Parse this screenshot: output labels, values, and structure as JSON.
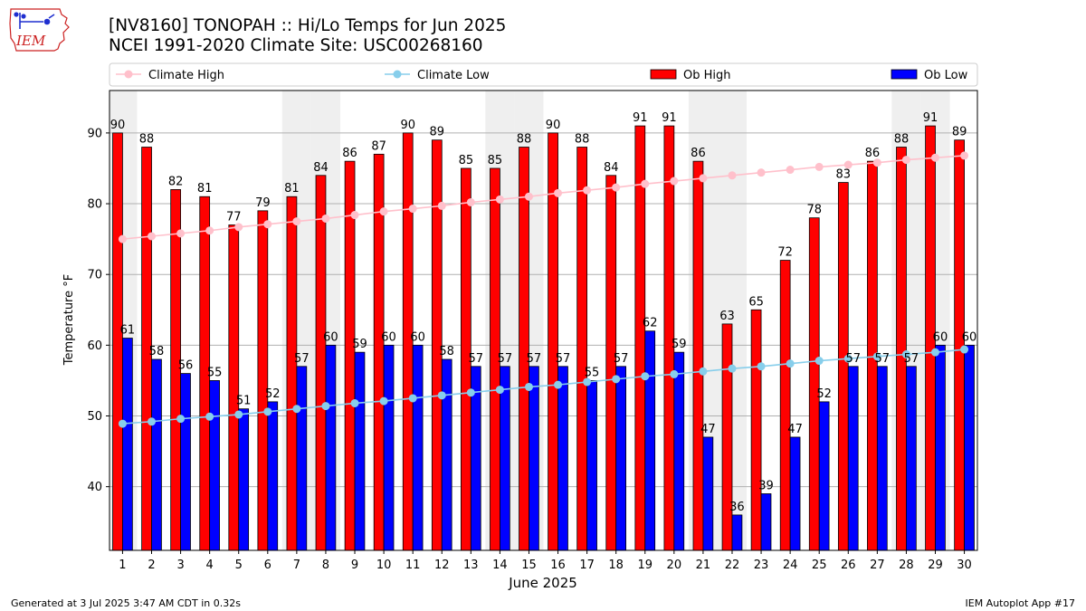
{
  "header": {
    "title_line1": "[NV8160] TONOPAH :: Hi/Lo Temps for Jun 2025",
    "title_line2": "NCEI 1991-2020 Climate Site: USC00268160",
    "logo_text": "IEM"
  },
  "footer": {
    "left": "Generated at 3 Jul 2025 3:47 AM CDT in 0.32s",
    "right": "IEM Autoplot App #17"
  },
  "colors": {
    "ob_high": "#ff0000",
    "ob_low": "#0000ff",
    "climate_high": "#ffc0cb",
    "climate_low": "#87ceeb",
    "weekend_band": "#efefef",
    "grid": "#b0b0b0",
    "logo_red": "#cc2222",
    "logo_blue": "#1f2fcf"
  },
  "chart_data": {
    "type": "bar",
    "xlabel": "June 2025",
    "ylabel": "Temperature °F",
    "ylim": [
      31,
      96
    ],
    "xlim": [
      0.55,
      30.45
    ],
    "yticks": [
      40,
      50,
      60,
      70,
      80,
      90
    ],
    "grid": "horizontal",
    "legend_position": "top",
    "categories": [
      1,
      2,
      3,
      4,
      5,
      6,
      7,
      8,
      9,
      10,
      11,
      12,
      13,
      14,
      15,
      16,
      17,
      18,
      19,
      20,
      21,
      22,
      23,
      24,
      25,
      26,
      27,
      28,
      29,
      30
    ],
    "shaded_days": [
      1,
      7,
      8,
      14,
      15,
      21,
      22,
      28,
      29
    ],
    "series": [
      {
        "name": "Ob High",
        "kind": "bar",
        "color": "#ff0000",
        "values": [
          90,
          88,
          82,
          81,
          77,
          79,
          81,
          84,
          86,
          87,
          90,
          89,
          85,
          85,
          88,
          90,
          88,
          84,
          91,
          91,
          86,
          63,
          65,
          72,
          78,
          83,
          86,
          88,
          91,
          89
        ]
      },
      {
        "name": "Ob Low",
        "kind": "bar",
        "color": "#0000ff",
        "values": [
          61,
          58,
          56,
          55,
          51,
          52,
          57,
          60,
          59,
          60,
          60,
          58,
          57,
          57,
          57,
          57,
          55,
          57,
          62,
          59,
          47,
          36,
          39,
          47,
          52,
          57,
          57,
          57,
          60,
          60
        ]
      },
      {
        "name": "Climate High",
        "kind": "line",
        "color": "#ffc0cb",
        "values": [
          75.0,
          75.4,
          75.8,
          76.2,
          76.7,
          77.1,
          77.5,
          77.9,
          78.4,
          78.9,
          79.3,
          79.7,
          80.2,
          80.6,
          81.0,
          81.5,
          81.9,
          82.3,
          82.8,
          83.2,
          83.6,
          84.0,
          84.4,
          84.8,
          85.2,
          85.5,
          85.8,
          86.2,
          86.5,
          86.8
        ]
      },
      {
        "name": "Climate Low",
        "kind": "line",
        "color": "#87ceeb",
        "values": [
          48.9,
          49.2,
          49.6,
          49.9,
          50.2,
          50.6,
          51.0,
          51.4,
          51.8,
          52.1,
          52.5,
          52.9,
          53.3,
          53.7,
          54.1,
          54.4,
          54.8,
          55.2,
          55.6,
          55.9,
          56.3,
          56.7,
          57.0,
          57.4,
          57.8,
          58.1,
          58.4,
          58.7,
          59.0,
          59.4
        ]
      }
    ]
  }
}
